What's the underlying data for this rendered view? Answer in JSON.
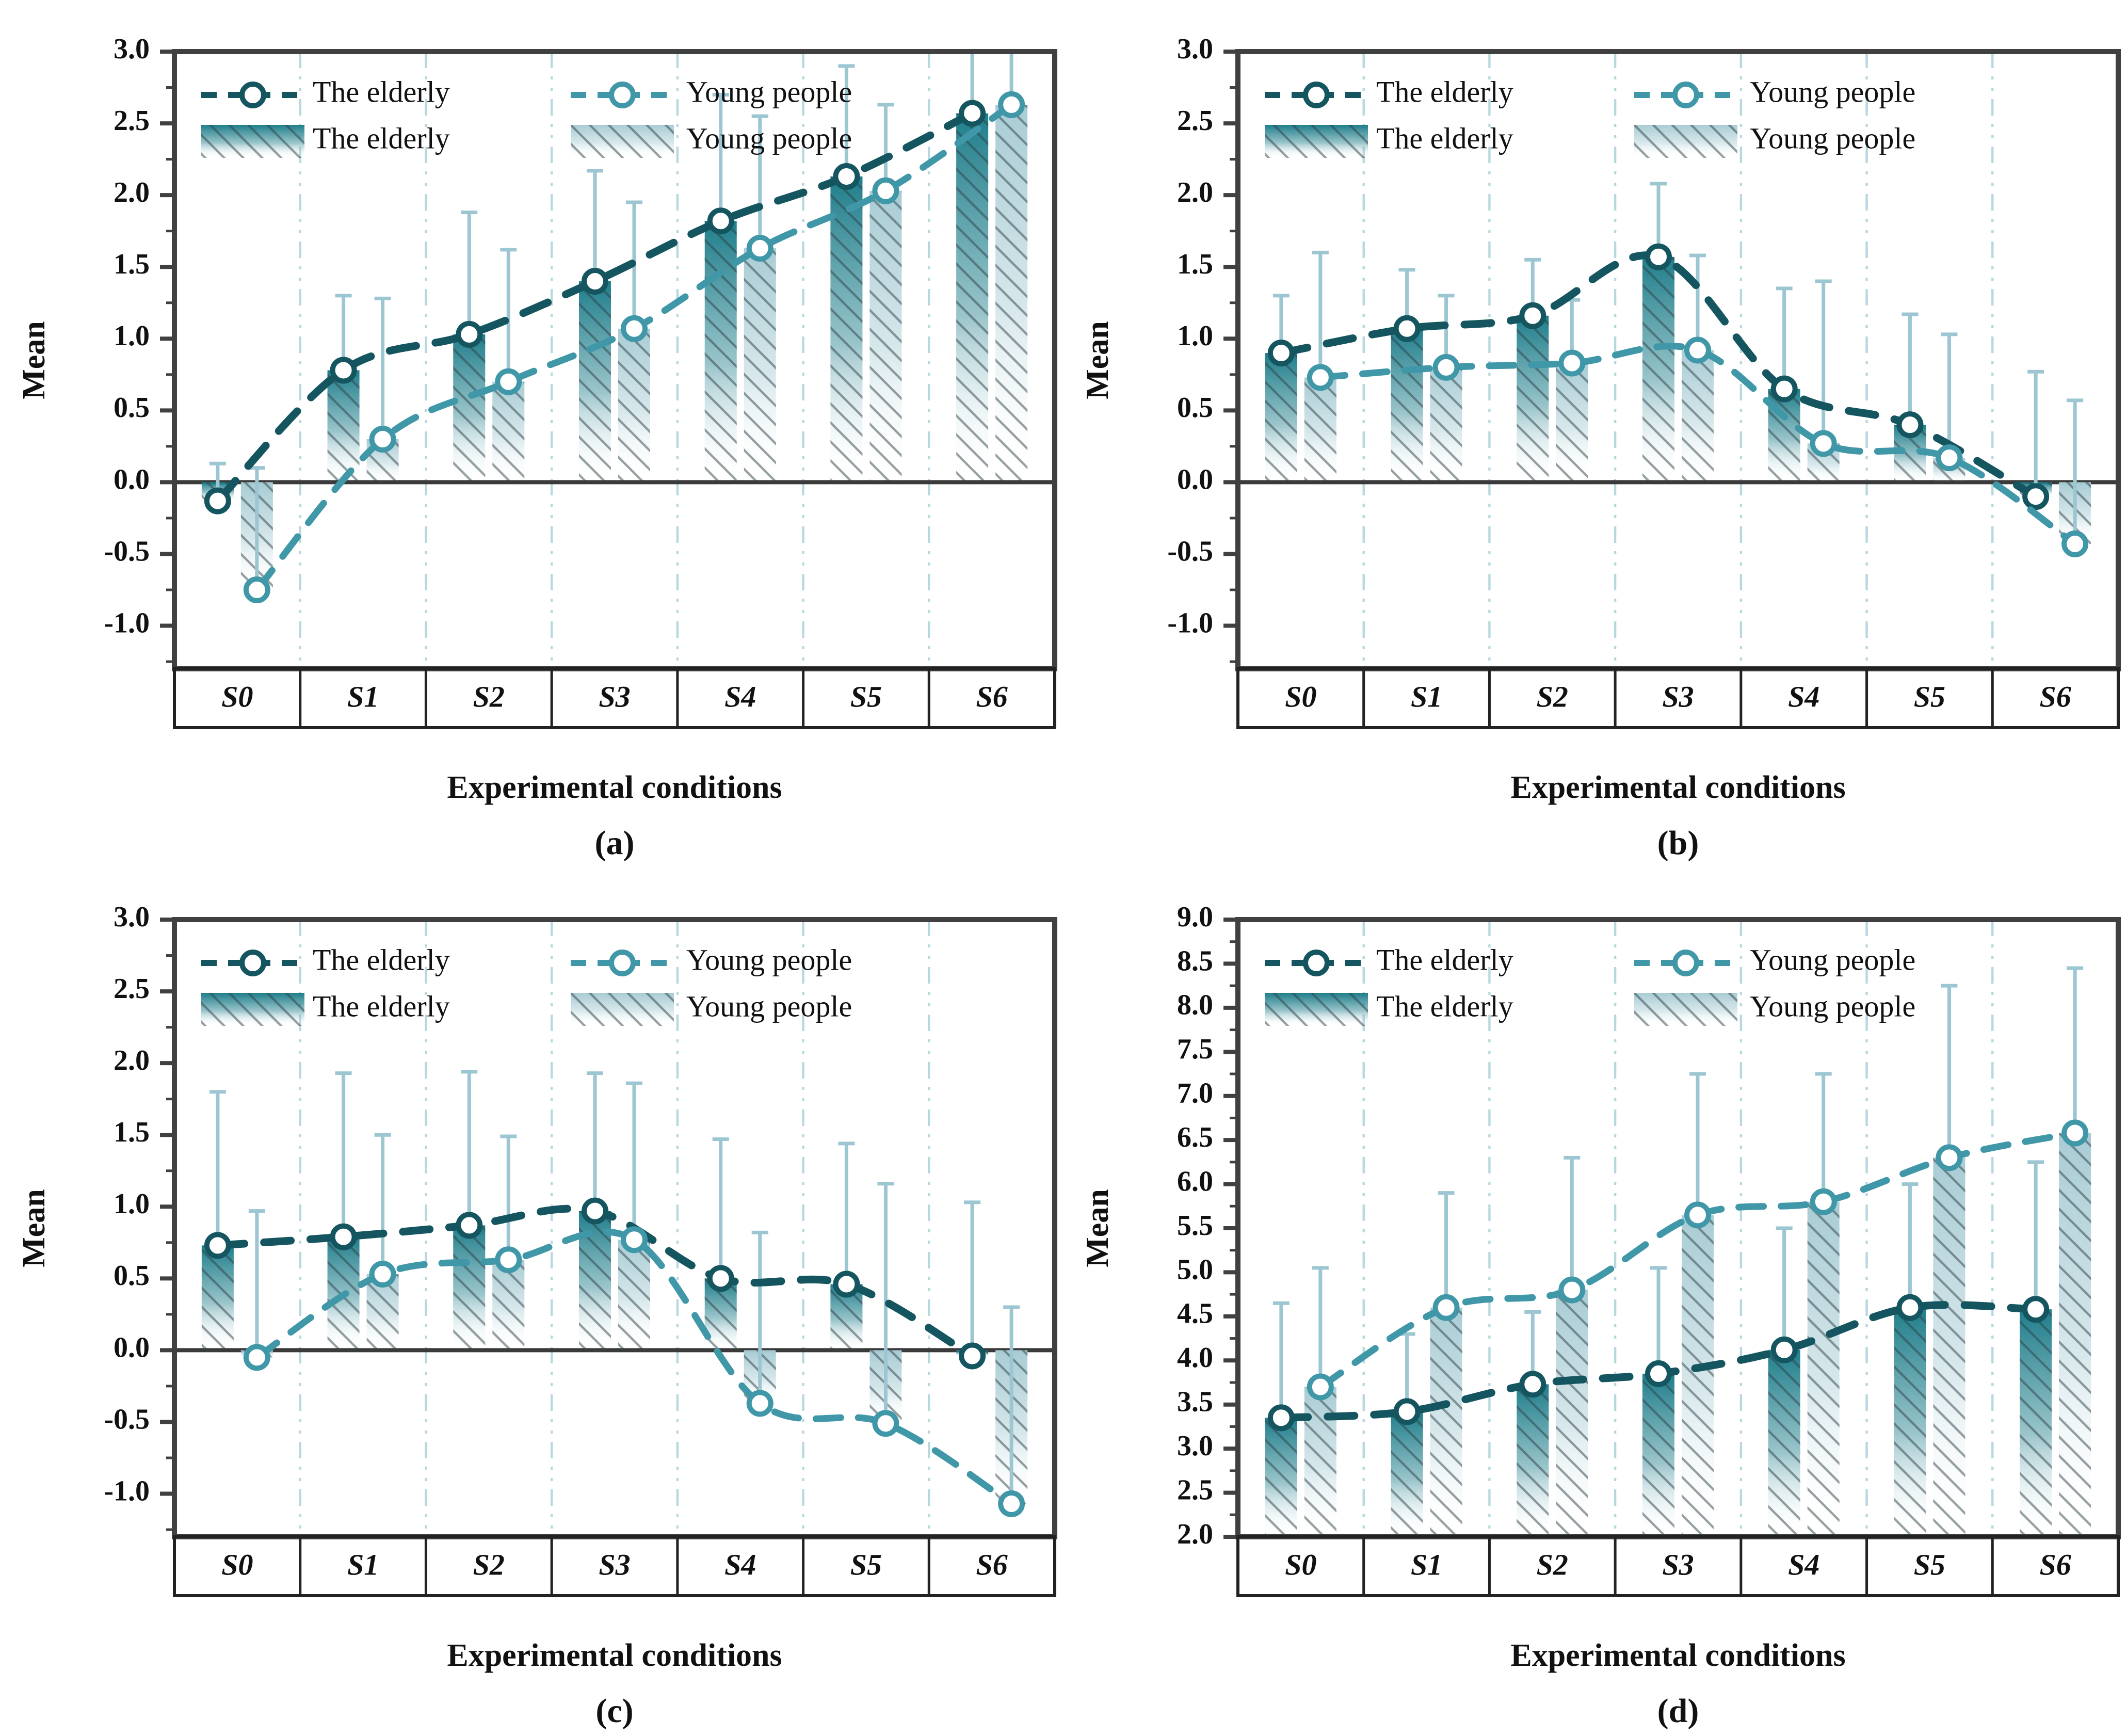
{
  "colors": {
    "elderly_line": "#14555f",
    "young_line": "#3f97a8",
    "elderly_bar": "#1f7e8b",
    "young_bar": "#a8ccd4",
    "error_bar": "#9cc6d2",
    "grid": "#b7d8df",
    "axis": "#404040",
    "zero_line": "#3a3a3a",
    "hatch": "rgba(45,64,70,0.5)",
    "text": "#111111"
  },
  "legend": {
    "line_labels": [
      "The elderly",
      "Young people"
    ],
    "bar_labels": [
      "The elderly",
      "Young people"
    ]
  },
  "chart_data": [
    {
      "panel_label": "(a)",
      "type": "bar-line",
      "categories": [
        "S0",
        "S1",
        "S2",
        "S3",
        "S4",
        "S5",
        "S6"
      ],
      "xlabel": "Experimental conditions",
      "ylabel": "Mean",
      "ylim": [
        -1.3,
        3.0
      ],
      "yticks": [
        3.0,
        2.5,
        2.0,
        1.5,
        1.0,
        0.5,
        0.0,
        -0.5,
        -1.0
      ],
      "baseline": 0,
      "zero_line": true,
      "grid": true,
      "legend_position": "top-left",
      "series": [
        {
          "name": "The elderly",
          "role": "elderly",
          "values": [
            -0.13,
            0.78,
            1.03,
            1.4,
            1.82,
            2.13,
            2.57
          ],
          "error_top": [
            0.13,
            1.3,
            1.88,
            2.17,
            2.7,
            2.9,
            3.0
          ]
        },
        {
          "name": "Young people",
          "role": "young",
          "values": [
            -0.75,
            0.3,
            0.7,
            1.07,
            1.63,
            2.03,
            2.63
          ],
          "error_top": [
            0.1,
            1.28,
            1.62,
            1.95,
            2.55,
            2.63,
            3.0
          ]
        }
      ]
    },
    {
      "panel_label": "(b)",
      "type": "bar-line",
      "categories": [
        "S0",
        "S1",
        "S2",
        "S3",
        "S4",
        "S5",
        "S6"
      ],
      "xlabel": "Experimental conditions",
      "ylabel": "Mean",
      "ylim": [
        -1.3,
        3.0
      ],
      "yticks": [
        3.0,
        2.5,
        2.0,
        1.5,
        1.0,
        0.5,
        0.0,
        -0.5,
        -1.0
      ],
      "baseline": 0,
      "zero_line": true,
      "grid": true,
      "legend_position": "top-left",
      "series": [
        {
          "name": "The elderly",
          "role": "elderly",
          "values": [
            0.9,
            1.07,
            1.16,
            1.57,
            0.65,
            0.4,
            -0.1
          ],
          "error_top": [
            1.3,
            1.48,
            1.55,
            2.08,
            1.35,
            1.17,
            0.77
          ]
        },
        {
          "name": "Young people",
          "role": "young",
          "values": [
            0.73,
            0.8,
            0.83,
            0.92,
            0.27,
            0.17,
            -0.43
          ],
          "error_top": [
            1.6,
            1.3,
            1.27,
            1.58,
            1.4,
            1.03,
            0.57
          ]
        }
      ]
    },
    {
      "panel_label": "(c)",
      "type": "bar-line",
      "categories": [
        "S0",
        "S1",
        "S2",
        "S3",
        "S4",
        "S5",
        "S6"
      ],
      "xlabel": "Experimental conditions",
      "ylabel": "Mean",
      "ylim": [
        -1.3,
        3.0
      ],
      "yticks": [
        3.0,
        2.5,
        2.0,
        1.5,
        1.0,
        0.5,
        0.0,
        -0.5,
        -1.0
      ],
      "baseline": 0,
      "zero_line": true,
      "grid": true,
      "legend_position": "top-left",
      "series": [
        {
          "name": "The elderly",
          "role": "elderly",
          "values": [
            0.73,
            0.79,
            0.87,
            0.97,
            0.5,
            0.46,
            -0.04
          ],
          "error_top": [
            1.8,
            1.93,
            1.94,
            1.93,
            1.47,
            1.44,
            1.03
          ]
        },
        {
          "name": "Young people",
          "role": "young",
          "values": [
            -0.05,
            0.53,
            0.63,
            0.77,
            -0.37,
            -0.51,
            -1.07
          ],
          "error_top": [
            0.97,
            1.5,
            1.49,
            1.86,
            0.82,
            1.16,
            0.3
          ]
        }
      ]
    },
    {
      "panel_label": "(d)",
      "type": "bar-line",
      "categories": [
        "S0",
        "S1",
        "S2",
        "S3",
        "S4",
        "S5",
        "S6"
      ],
      "xlabel": "Experimental conditions",
      "ylabel": "Mean",
      "ylim": [
        2.0,
        9.0
      ],
      "yticks": [
        9.0,
        8.5,
        8.0,
        7.5,
        7.0,
        6.5,
        6.0,
        5.5,
        5.0,
        4.5,
        4.0,
        3.5,
        3.0,
        2.5,
        2.0
      ],
      "baseline": 2.0,
      "zero_line": false,
      "grid": true,
      "legend_position": "top-left",
      "series": [
        {
          "name": "The elderly",
          "role": "elderly",
          "values": [
            3.35,
            3.42,
            3.73,
            3.85,
            4.12,
            4.6,
            4.58
          ],
          "error_top": [
            4.65,
            4.3,
            4.55,
            5.05,
            5.5,
            6.0,
            6.25
          ]
        },
        {
          "name": "Young people",
          "role": "young",
          "values": [
            3.7,
            4.6,
            4.8,
            5.65,
            5.8,
            6.3,
            6.58
          ],
          "error_top": [
            5.05,
            5.9,
            6.3,
            7.25,
            7.25,
            8.25,
            8.45
          ]
        }
      ]
    }
  ]
}
